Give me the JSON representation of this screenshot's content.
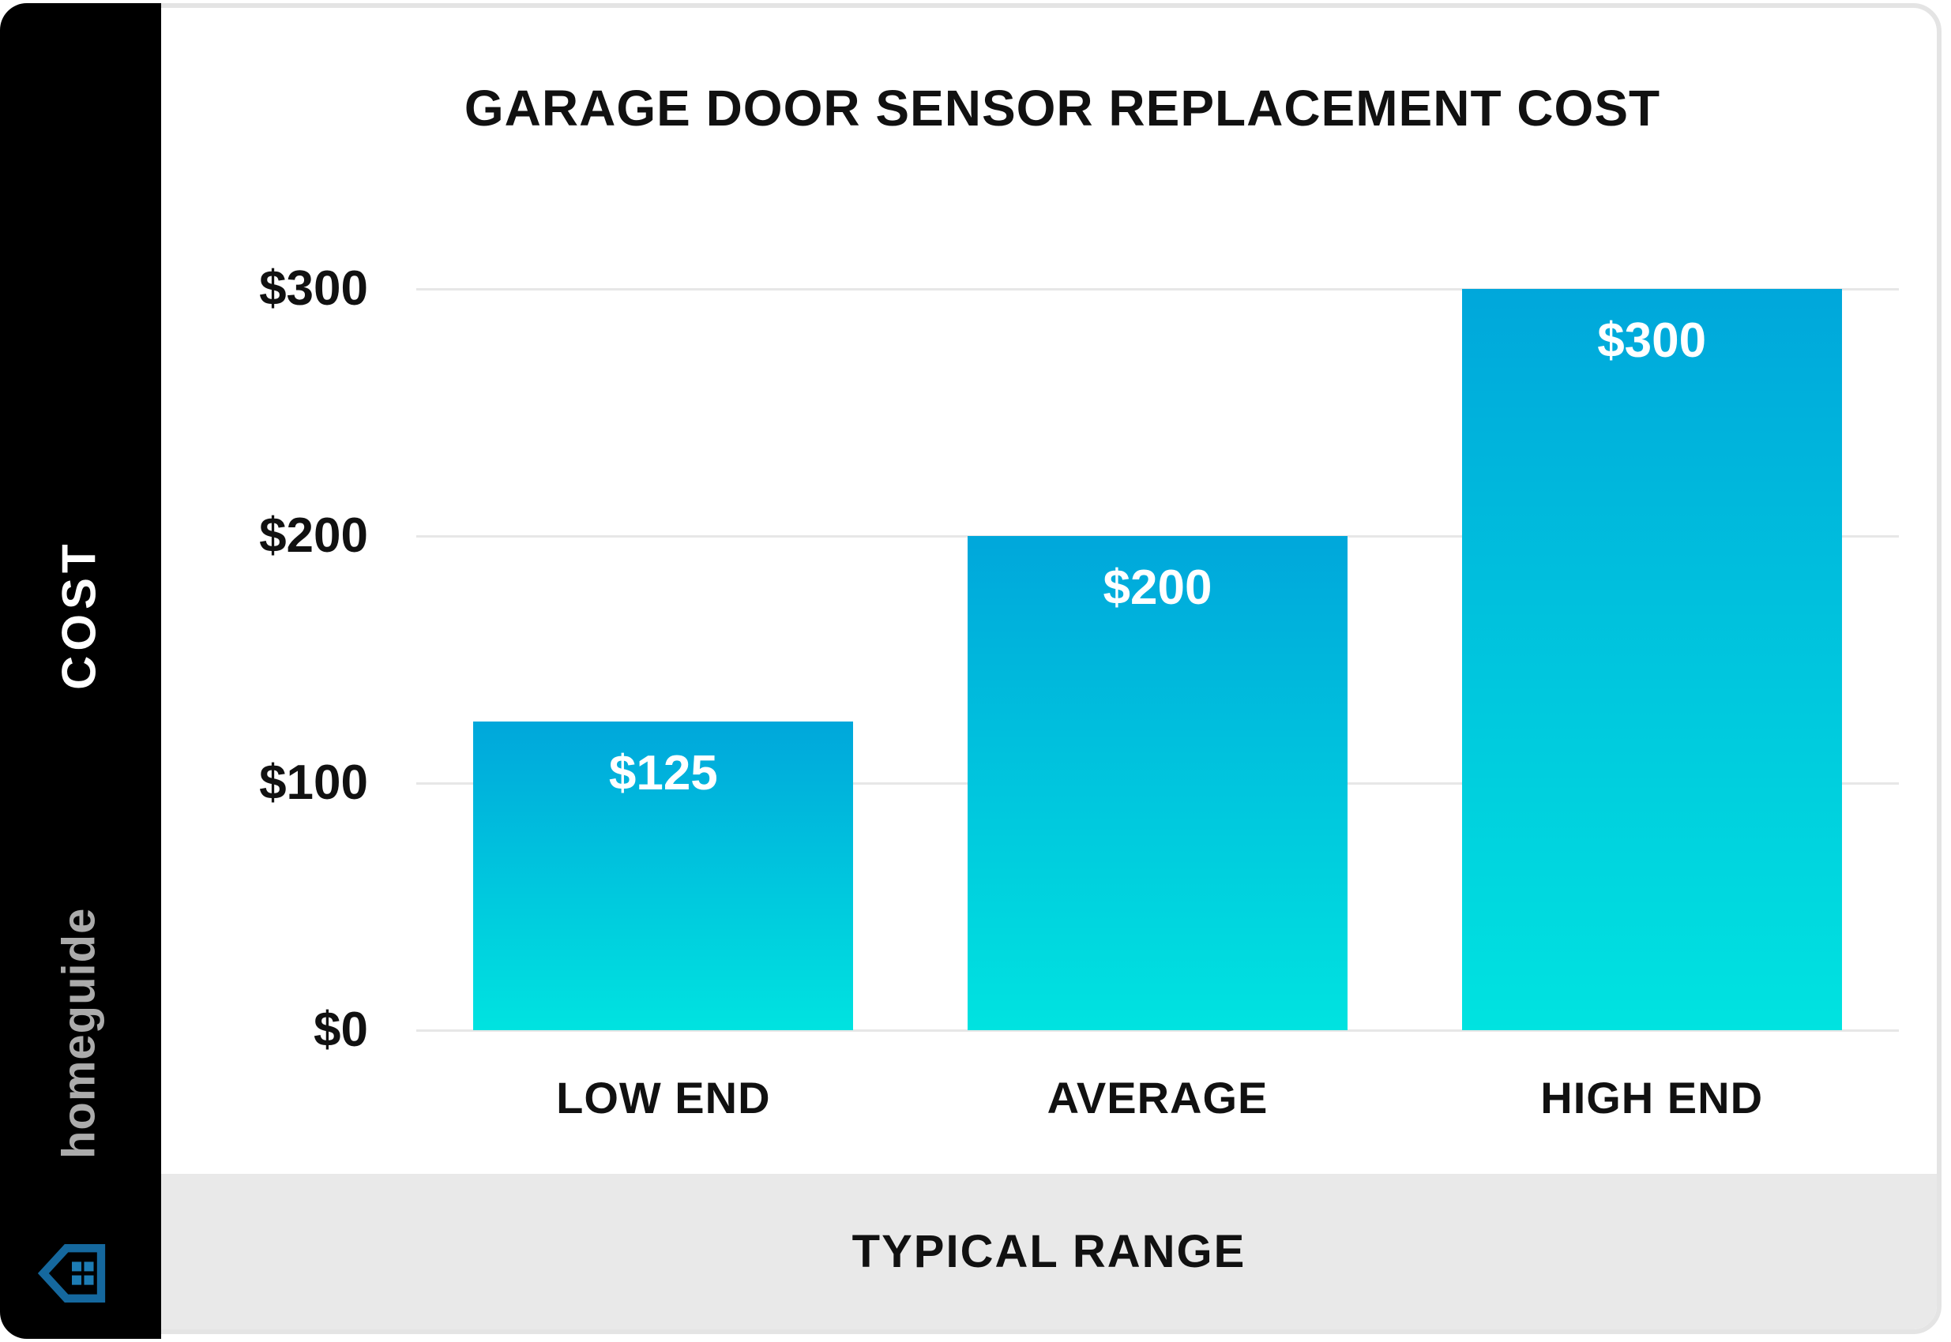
{
  "card": {
    "background": "#ffffff",
    "border_color": "#e4e4e4",
    "footer_background": "#e9e9e9"
  },
  "sidebar": {
    "background": "#000000",
    "ylabel": "COST",
    "brand": {
      "name": "homeguide",
      "text_color": "#ababab",
      "icon": "house-icon",
      "icon_outline_color": "#15689e",
      "icon_window_color": "#1d7cb4"
    }
  },
  "chart_data": {
    "type": "bar",
    "title": "GARAGE DOOR SENSOR REPLACEMENT COST",
    "categories": [
      "LOW END",
      "AVERAGE",
      "HIGH END"
    ],
    "values": [
      125,
      200,
      300
    ],
    "bar_labels": [
      "$125",
      "$200",
      "$300"
    ],
    "xlabel": "TYPICAL RANGE",
    "ylabel": "COST",
    "ylim": [
      0,
      300
    ],
    "yticks": [
      {
        "label": "$0",
        "value": 0
      },
      {
        "label": "$100",
        "value": 100
      },
      {
        "label": "$200",
        "value": 200
      },
      {
        "label": "$300",
        "value": 300
      }
    ],
    "grid": true,
    "legend": false,
    "bar_gradient_top": "#00a7db",
    "bar_gradient_bottom": "#00e3e0",
    "gridline_color": "#e7e7e7",
    "axis_text_color": "#111111",
    "value_label_color": "#ffffff"
  }
}
